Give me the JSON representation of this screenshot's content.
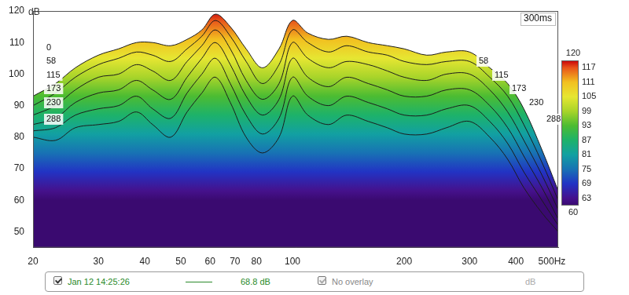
{
  "chart_data": {
    "type": "waterfall",
    "y_label": "dB",
    "time_span_label": "300ms",
    "log": "x",
    "grid": false,
    "xlim": [
      20,
      520
    ],
    "xticks": [
      20,
      30,
      40,
      50,
      60,
      70,
      80,
      100,
      200,
      300,
      400,
      {
        "value": 500,
        "label": "500Hz"
      }
    ],
    "ylim": [
      45,
      120
    ],
    "yticks": [
      50,
      60,
      70,
      80,
      90,
      100,
      110,
      120
    ],
    "x": [
      20,
      23,
      26,
      30,
      34,
      38,
      42,
      47,
      52,
      57,
      62,
      68,
      75,
      83,
      92,
      100,
      110,
      125,
      140,
      160,
      180,
      200,
      230,
      260,
      300,
      340,
      380,
      420,
      470,
      520
    ],
    "series": [
      {
        "name": "0",
        "values": [
          93,
          97,
          102,
          106,
          108,
          110,
          110,
          109,
          111,
          114,
          119,
          115,
          108,
          102,
          108,
          117,
          113,
          111,
          112,
          110,
          109,
          108,
          106,
          107,
          107,
          102,
          97,
          89,
          76,
          63
        ]
      },
      {
        "name": "58",
        "values": [
          90,
          94,
          99,
          103,
          105,
          107,
          106,
          104,
          108,
          112,
          117,
          112,
          104,
          97,
          103,
          114,
          110,
          107,
          109,
          107,
          106,
          104,
          103,
          104,
          104,
          99,
          93,
          84,
          72,
          60
        ]
      },
      {
        "name": "115",
        "values": [
          87,
          90,
          95,
          99,
          100,
          103,
          101,
          98,
          104,
          109,
          114,
          108,
          98,
          92,
          97,
          110,
          105,
          102,
          104,
          103,
          101,
          99,
          98,
          100,
          100,
          95,
          88,
          79,
          68,
          57
        ]
      },
      {
        "name": "173",
        "values": [
          84,
          86,
          91,
          94,
          95,
          98,
          95,
          92,
          99,
          105,
          110,
          103,
          93,
          87,
          92,
          105,
          99,
          96,
          99,
          97,
          95,
          93,
          93,
          95,
          95,
          90,
          83,
          74,
          64,
          54
        ]
      },
      {
        "name": "230",
        "values": [
          82,
          83,
          87,
          89,
          90,
          93,
          89,
          86,
          94,
          100,
          105,
          97,
          87,
          81,
          86,
          99,
          93,
          90,
          93,
          91,
          89,
          87,
          87,
          89,
          90,
          85,
          78,
          69,
          60,
          52
        ]
      },
      {
        "name": "288",
        "values": [
          80,
          79,
          83,
          84,
          85,
          88,
          84,
          80,
          88,
          94,
          99,
          91,
          80,
          75,
          80,
          93,
          87,
          84,
          87,
          85,
          83,
          81,
          81,
          83,
          85,
          80,
          73,
          64,
          56,
          50
        ]
      }
    ],
    "colorbar": {
      "range": [
        60,
        120
      ],
      "ticks": [
        60,
        63,
        69,
        75,
        81,
        87,
        93,
        99,
        105,
        111,
        117,
        120
      ]
    },
    "footer": {
      "measurement": "Jan 12 14:25:26",
      "level": "68.8 dB",
      "overlay": "No overlay",
      "unit": "dB"
    }
  }
}
